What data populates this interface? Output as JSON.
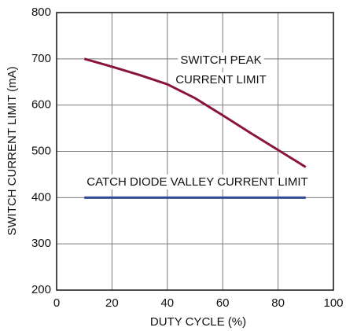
{
  "chart_data": {
    "type": "line",
    "xlabel": "DUTY CYCLE (%)",
    "ylabel": "SWITCH CURRENT LIMIT (mA)",
    "annotations": [
      "SWITCH PEAK",
      "CURRENT LIMIT",
      "CATCH DIODE VALLEY CURRENT LIMIT"
    ],
    "x": [
      10,
      20,
      30,
      40,
      50,
      60,
      70,
      80,
      90
    ],
    "series": [
      {
        "color": "#8a1538",
        "values": [
          700,
          683,
          665,
          645,
          615,
          578,
          540,
          503,
          466
        ]
      },
      {
        "color": "#2f4b94",
        "values": [
          400,
          400,
          400,
          400,
          400,
          400,
          400,
          400,
          400
        ]
      }
    ],
    "xlim": [
      0,
      100
    ],
    "xticks": [
      0,
      20,
      40,
      60,
      80,
      100
    ],
    "ylim": [
      200,
      800
    ],
    "yticks": [
      200,
      300,
      400,
      500,
      600,
      700,
      800
    ],
    "grid": true
  }
}
